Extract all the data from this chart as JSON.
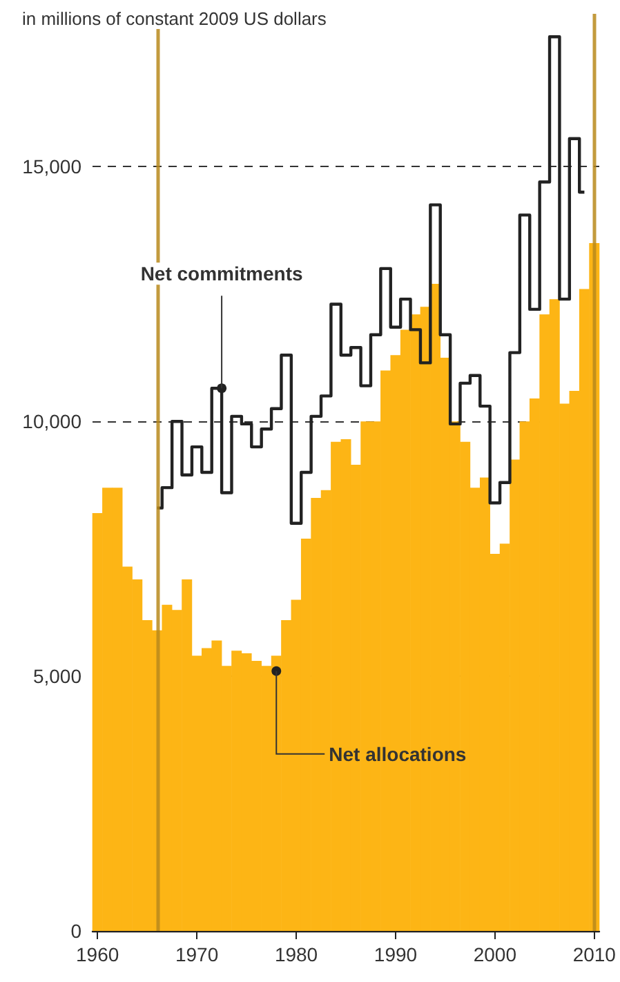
{
  "chart_data": {
    "type": "bar",
    "ylabel": "in millions of constant 2009 US dollars",
    "x": [
      1960,
      1961,
      1962,
      1963,
      1964,
      1965,
      1966,
      1967,
      1968,
      1969,
      1970,
      1971,
      1972,
      1973,
      1974,
      1975,
      1976,
      1977,
      1978,
      1979,
      1980,
      1981,
      1982,
      1983,
      1984,
      1985,
      1986,
      1987,
      1988,
      1989,
      1990,
      1991,
      1992,
      1993,
      1994,
      1995,
      1996,
      1997,
      1998,
      1999,
      2000,
      2001,
      2002,
      2003,
      2004,
      2005,
      2006,
      2007,
      2008,
      2009,
      2010
    ],
    "series": [
      {
        "color": "#fdb515",
        "values": [
          8200,
          8700,
          8700,
          7150,
          6900,
          6100,
          5900,
          6400,
          6300,
          6900,
          5400,
          5550,
          5700,
          5200,
          5500,
          5450,
          5300,
          5200,
          5400,
          6100,
          6500,
          7700,
          8500,
          8650,
          9600,
          9650,
          9150,
          10000,
          10000,
          11000,
          11300,
          11800,
          12100,
          12250,
          12700,
          11250,
          10000,
          9600,
          8700,
          8900,
          7400,
          7600,
          9250,
          10000,
          10450,
          12100,
          12400,
          10350,
          10600,
          12600,
          13500
        ]
      },
      {
        "type": "step",
        "color": "#222222",
        "x": [
          1966,
          1967,
          1968,
          1969,
          1970,
          1971,
          1972,
          1973,
          1974,
          1975,
          1976,
          1977,
          1978,
          1979,
          1980,
          1981,
          1982,
          1983,
          1984,
          1985,
          1986,
          1987,
          1988,
          1989,
          1990,
          1991,
          1992,
          1993,
          1994,
          1995,
          1996,
          1997,
          1998,
          1999,
          2000,
          2001,
          2002,
          2003,
          2004,
          2005,
          2006,
          2007,
          2008,
          2009
        ],
        "values": [
          8300,
          8700,
          10000,
          8950,
          9500,
          9000,
          10650,
          8600,
          10100,
          9950,
          9500,
          9850,
          10250,
          11300,
          8000,
          9000,
          10100,
          10500,
          12300,
          11300,
          11450,
          10700,
          11700,
          13000,
          11850,
          12400,
          11800,
          11150,
          14250,
          11700,
          9950,
          10750,
          10900,
          10300,
          8400,
          8800,
          11350,
          14050,
          12200,
          14700,
          17550,
          12400,
          15550,
          14500
        ]
      }
    ],
    "xlim": [
      1959.5,
      2010.5
    ],
    "xticks": [
      1960,
      1970,
      1980,
      1990,
      2000,
      2010
    ],
    "ylim": [
      0,
      18000
    ],
    "yticks": [
      0,
      {
        "value": 5000,
        "label": "5,000"
      },
      {
        "value": 10000,
        "label": "10,000"
      },
      {
        "value": 15000,
        "label": "15,000"
      }
    ],
    "grid": "y",
    "ref_lines": [
      {
        "axis": "x",
        "value": 1966,
        "color": "#b8891c"
      },
      {
        "axis": "x",
        "value": 2010,
        "color": "#b8891c"
      }
    ],
    "annotations": [
      {
        "text": "Net commitments",
        "x": 1972.5,
        "y": 10650
      },
      {
        "text": "Net allocations",
        "x": 1978,
        "y": 5100
      }
    ]
  }
}
